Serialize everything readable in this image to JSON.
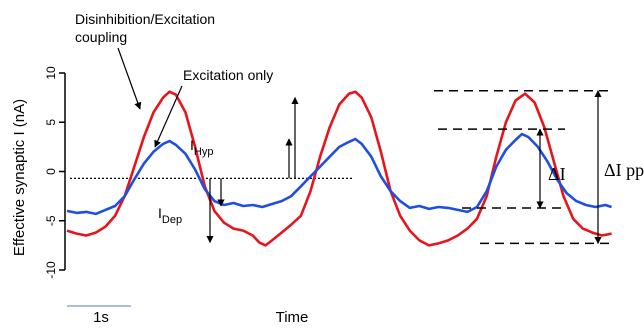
{
  "chart_data": {
    "type": "line",
    "xlabel": "Time",
    "ylabel": "Effective synaptic I (nA)",
    "ylim": [
      -10,
      10
    ],
    "xlim": [
      0,
      8.6
    ],
    "yticks": [
      10,
      5,
      0,
      -5,
      -10
    ],
    "scale_bar": {
      "label": "1s",
      "length": 1
    },
    "baseline_y": -0.7,
    "series": [
      {
        "name": "Disinhibition/Excitation coupling",
        "color": "#e8141c",
        "points": [
          [
            0,
            -6.0
          ],
          [
            0.15,
            -6.3
          ],
          [
            0.3,
            -6.5
          ],
          [
            0.45,
            -6.2
          ],
          [
            0.6,
            -5.6
          ],
          [
            0.75,
            -4.5
          ],
          [
            0.9,
            -2.5
          ],
          [
            1.05,
            0.5
          ],
          [
            1.2,
            3.5
          ],
          [
            1.35,
            6.0
          ],
          [
            1.5,
            7.5
          ],
          [
            1.6,
            8.1
          ],
          [
            1.7,
            7.8
          ],
          [
            1.85,
            6.0
          ],
          [
            2.0,
            2.5
          ],
          [
            2.15,
            -1.5
          ],
          [
            2.3,
            -4.0
          ],
          [
            2.45,
            -5.2
          ],
          [
            2.6,
            -5.8
          ],
          [
            2.75,
            -6.0
          ],
          [
            2.9,
            -6.5
          ],
          [
            3.0,
            -7.2
          ],
          [
            3.1,
            -7.5
          ],
          [
            3.2,
            -7.0
          ],
          [
            3.35,
            -6.2
          ],
          [
            3.5,
            -5.4
          ],
          [
            3.65,
            -4.5
          ],
          [
            3.8,
            -2.0
          ],
          [
            3.95,
            1.5
          ],
          [
            4.1,
            4.5
          ],
          [
            4.25,
            6.8
          ],
          [
            4.4,
            7.9
          ],
          [
            4.5,
            8.1
          ],
          [
            4.6,
            7.5
          ],
          [
            4.75,
            5.5
          ],
          [
            4.9,
            2.0
          ],
          [
            5.05,
            -2.0
          ],
          [
            5.2,
            -4.5
          ],
          [
            5.35,
            -6.0
          ],
          [
            5.5,
            -7.0
          ],
          [
            5.65,
            -7.5
          ],
          [
            5.8,
            -7.3
          ],
          [
            5.95,
            -7.0
          ],
          [
            6.1,
            -6.5
          ],
          [
            6.25,
            -5.8
          ],
          [
            6.4,
            -4.8
          ],
          [
            6.55,
            -2.5
          ],
          [
            6.7,
            1.5
          ],
          [
            6.85,
            5.0
          ],
          [
            7.0,
            7.2
          ],
          [
            7.15,
            7.9
          ],
          [
            7.3,
            7.0
          ],
          [
            7.45,
            4.5
          ],
          [
            7.6,
            1.0
          ],
          [
            7.75,
            -2.5
          ],
          [
            7.9,
            -4.8
          ],
          [
            8.05,
            -5.8
          ],
          [
            8.2,
            -6.2
          ],
          [
            8.35,
            -6.5
          ],
          [
            8.5,
            -6.3
          ]
        ]
      },
      {
        "name": "Excitation only",
        "color": "#1f4fe0",
        "points": [
          [
            0,
            -4.0
          ],
          [
            0.15,
            -4.2
          ],
          [
            0.3,
            -4.1
          ],
          [
            0.45,
            -4.3
          ],
          [
            0.6,
            -3.9
          ],
          [
            0.75,
            -3.5
          ],
          [
            0.9,
            -2.5
          ],
          [
            1.05,
            -0.8
          ],
          [
            1.2,
            0.8
          ],
          [
            1.35,
            2.0
          ],
          [
            1.5,
            2.8
          ],
          [
            1.6,
            3.1
          ],
          [
            1.7,
            2.7
          ],
          [
            1.85,
            1.8
          ],
          [
            2.0,
            0.2
          ],
          [
            2.15,
            -1.8
          ],
          [
            2.3,
            -3.0
          ],
          [
            2.45,
            -3.4
          ],
          [
            2.6,
            -3.2
          ],
          [
            2.75,
            -3.5
          ],
          [
            2.9,
            -3.4
          ],
          [
            3.05,
            -3.6
          ],
          [
            3.2,
            -3.3
          ],
          [
            3.35,
            -3.0
          ],
          [
            3.5,
            -2.5
          ],
          [
            3.65,
            -1.5
          ],
          [
            3.8,
            -0.5
          ],
          [
            3.95,
            0.5
          ],
          [
            4.1,
            1.5
          ],
          [
            4.25,
            2.5
          ],
          [
            4.4,
            3.0
          ],
          [
            4.5,
            3.3
          ],
          [
            4.6,
            2.8
          ],
          [
            4.75,
            1.5
          ],
          [
            4.9,
            -0.5
          ],
          [
            5.05,
            -2.0
          ],
          [
            5.2,
            -3.0
          ],
          [
            5.35,
            -3.7
          ],
          [
            5.5,
            -3.5
          ],
          [
            5.65,
            -3.8
          ],
          [
            5.8,
            -3.6
          ],
          [
            5.95,
            -3.7
          ],
          [
            6.1,
            -3.9
          ],
          [
            6.25,
            -4.1
          ],
          [
            6.4,
            -3.6
          ],
          [
            6.55,
            -2.0
          ],
          [
            6.7,
            0.5
          ],
          [
            6.85,
            2.2
          ],
          [
            7.0,
            3.2
          ],
          [
            7.1,
            3.8
          ],
          [
            7.2,
            3.5
          ],
          [
            7.35,
            2.5
          ],
          [
            7.5,
            1.0
          ],
          [
            7.65,
            -0.8
          ],
          [
            7.8,
            -2.2
          ],
          [
            7.95,
            -3.0
          ],
          [
            8.1,
            -3.4
          ],
          [
            8.25,
            -3.6
          ],
          [
            8.4,
            -3.4
          ],
          [
            8.5,
            -3.6
          ]
        ]
      }
    ],
    "annotations": {
      "red_label": "Disinhibition/Excitation coupling",
      "blue_label": "Excitation only",
      "i_hyp": {
        "main": "I",
        "sub": "Hyp"
      },
      "i_dep": {
        "main": "I",
        "sub": "Dep"
      },
      "delta_i": "ΔI",
      "delta_i_pp": "ΔI pp"
    },
    "colors": {
      "axis": "#000000",
      "scale_bar": "#8aa8d8"
    }
  }
}
